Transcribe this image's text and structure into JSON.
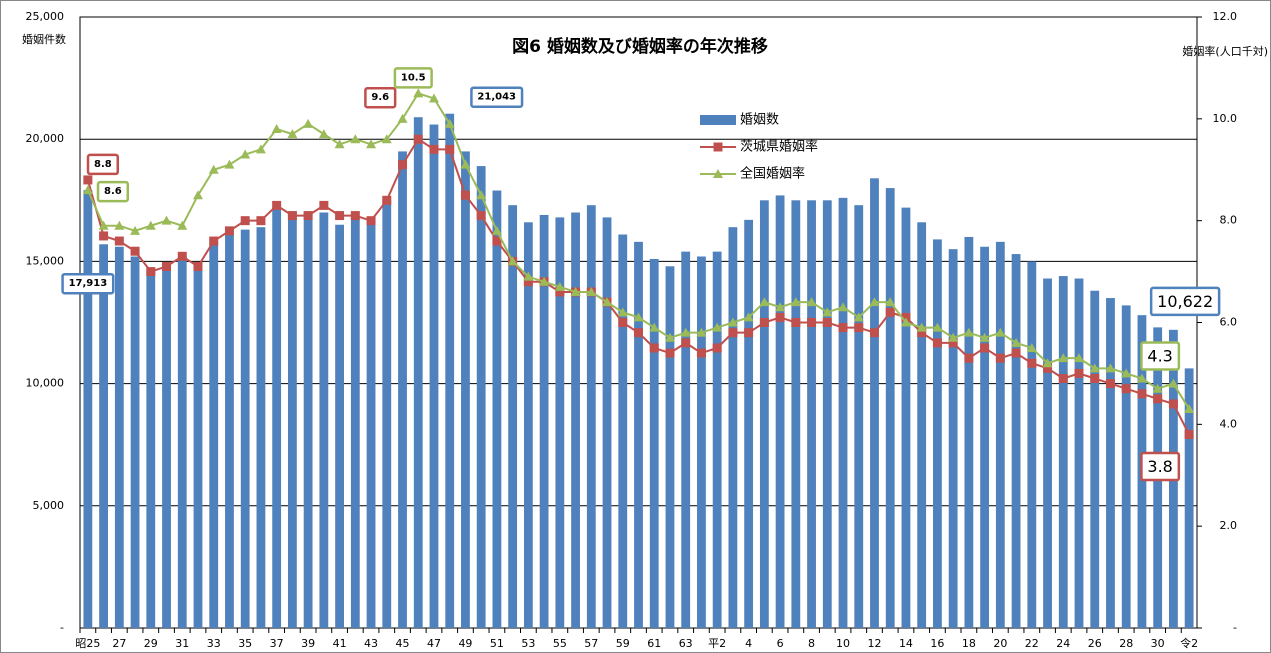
{
  "chart_data": {
    "type": "bar",
    "title": "図6 婚姻数及び婚姻率の年次推移",
    "y_label": "婚姻件数",
    "y2_label": "婚姻率(人口千対)",
    "categories": [
      "昭25",
      null,
      "27",
      null,
      "29",
      null,
      "31",
      null,
      "33",
      null,
      "35",
      null,
      "37",
      null,
      "39",
      null,
      "41",
      null,
      "43",
      null,
      "45",
      null,
      "47",
      null,
      "49",
      null,
      "51",
      null,
      "53",
      null,
      "55",
      null,
      "57",
      null,
      "59",
      null,
      "61",
      null,
      "63",
      null,
      "平2",
      null,
      "4",
      null,
      "6",
      null,
      "8",
      null,
      "10",
      null,
      "12",
      null,
      "14",
      null,
      "16",
      null,
      "18",
      null,
      "20",
      null,
      "22",
      null,
      "24",
      null,
      "26",
      null,
      "28",
      null,
      "30",
      null,
      "令2"
    ],
    "ylim": [
      0,
      25000
    ],
    "yticks": [
      {
        "value": 0,
        "label": "-"
      },
      {
        "value": 5000,
        "label": "5,000"
      },
      {
        "value": 10000,
        "label": "10,000"
      },
      {
        "value": 15000,
        "label": "15,000"
      },
      {
        "value": 20000,
        "label": "20,000"
      },
      {
        "value": 25000,
        "label": "25,000"
      }
    ],
    "y2lim": [
      0,
      12
    ],
    "y2ticks": [
      {
        "value": 0,
        "label": "-"
      },
      {
        "value": 2,
        "label": "2.0"
      },
      {
        "value": 4,
        "label": "4.0"
      },
      {
        "value": 6,
        "label": "6.0"
      },
      {
        "value": 8,
        "label": "8.0"
      },
      {
        "value": 10,
        "label": "10.0"
      },
      {
        "value": 12,
        "label": "12.0"
      }
    ],
    "grid": true,
    "legend": "top-center",
    "series": [
      {
        "name": "婚姻数",
        "color": "#4f81bd",
        "values": [
          17913,
          15700,
          15600,
          15200,
          14600,
          14700,
          15200,
          14700,
          15800,
          16100,
          16300,
          16400,
          17200,
          17000,
          17000,
          17000,
          16500,
          16800,
          16600,
          17500,
          19500,
          20900,
          20600,
          21043,
          19500,
          18900,
          17900,
          17300,
          16600,
          16900,
          16800,
          17000,
          17300,
          16800,
          16100,
          15800,
          15100,
          14800,
          15400,
          15200,
          15400,
          16400,
          16700,
          17500,
          17700,
          17500,
          17500,
          17500,
          17600,
          17300,
          18400,
          18000,
          17200,
          16600,
          15900,
          15500,
          16000,
          15600,
          15800,
          15300,
          15000,
          14300,
          14400,
          14300,
          13800,
          13500,
          13200,
          12800,
          12300,
          12200,
          10622
        ],
        "value_labels": [
          "17,913",
          null,
          null,
          null,
          null,
          null,
          null,
          null,
          null,
          null,
          null,
          null,
          null,
          null,
          null,
          null,
          null,
          null,
          null,
          null,
          null,
          null,
          null,
          "21,043",
          null,
          null,
          null,
          null,
          null,
          null,
          null,
          null,
          null,
          null,
          null,
          null,
          null,
          null,
          null,
          null,
          null,
          null,
          null,
          null,
          null,
          null,
          null,
          null,
          null,
          null,
          null,
          null,
          null,
          null,
          null,
          null,
          null,
          null,
          null,
          null,
          null,
          null,
          null,
          null,
          null,
          null,
          null,
          null,
          null,
          null,
          "10,622"
        ]
      },
      {
        "name": "茨城県婚姻率",
        "type": "line",
        "axis": "y2",
        "color": "#c0504d",
        "values": [
          8.8,
          7.7,
          7.6,
          7.4,
          7.0,
          7.1,
          7.3,
          7.1,
          7.6,
          7.8,
          8.0,
          8.0,
          8.3,
          8.1,
          8.1,
          8.3,
          8.1,
          8.1,
          8.0,
          8.4,
          9.1,
          9.6,
          9.4,
          9.4,
          8.5,
          8.1,
          7.6,
          7.2,
          6.8,
          6.8,
          6.6,
          6.6,
          6.6,
          6.4,
          6.0,
          5.8,
          5.5,
          5.4,
          5.6,
          5.4,
          5.5,
          5.8,
          5.8,
          6.0,
          6.1,
          6.0,
          6.0,
          6.0,
          5.9,
          5.9,
          5.8,
          6.2,
          6.1,
          5.8,
          5.6,
          5.6,
          5.3,
          5.5,
          5.3,
          5.4,
          5.2,
          5.1,
          4.9,
          5.0,
          4.9,
          4.8,
          4.7,
          4.6,
          4.5,
          4.4,
          3.8
        ],
        "value_labels": [
          "8.8",
          null,
          null,
          null,
          null,
          null,
          null,
          null,
          null,
          null,
          null,
          null,
          null,
          null,
          null,
          null,
          null,
          null,
          null,
          null,
          null,
          "9.6",
          null,
          null,
          null,
          null,
          null,
          null,
          null,
          null,
          null,
          null,
          null,
          null,
          null,
          null,
          null,
          null,
          null,
          null,
          null,
          null,
          null,
          null,
          null,
          null,
          null,
          null,
          null,
          null,
          null,
          null,
          null,
          null,
          null,
          null,
          null,
          null,
          null,
          null,
          null,
          null,
          null,
          null,
          null,
          null,
          null,
          null,
          null,
          null,
          "3.8"
        ]
      },
      {
        "name": "全国婚姻率",
        "type": "line",
        "axis": "y2",
        "color": "#9bbb59",
        "values": [
          8.6,
          7.9,
          7.9,
          7.8,
          7.9,
          8.0,
          7.9,
          8.5,
          9.0,
          9.1,
          9.3,
          9.4,
          9.8,
          9.7,
          9.9,
          9.7,
          9.5,
          9.6,
          9.5,
          9.6,
          10.0,
          10.5,
          10.4,
          9.9,
          9.1,
          8.5,
          7.8,
          7.2,
          6.9,
          6.8,
          6.7,
          6.6,
          6.6,
          6.4,
          6.2,
          6.1,
          5.9,
          5.7,
          5.8,
          5.8,
          5.9,
          6.0,
          6.1,
          6.4,
          6.3,
          6.4,
          6.4,
          6.2,
          6.3,
          6.1,
          6.4,
          6.4,
          6.0,
          5.9,
          5.9,
          5.7,
          5.8,
          5.7,
          5.8,
          5.6,
          5.5,
          5.2,
          5.3,
          5.3,
          5.1,
          5.1,
          5.0,
          4.9,
          4.7,
          4.8,
          4.3
        ],
        "value_labels": [
          "8.6",
          null,
          null,
          null,
          null,
          null,
          null,
          null,
          null,
          null,
          null,
          null,
          null,
          null,
          null,
          null,
          null,
          null,
          null,
          null,
          null,
          "10.5",
          null,
          null,
          null,
          null,
          null,
          null,
          null,
          null,
          null,
          null,
          null,
          null,
          null,
          null,
          null,
          null,
          null,
          null,
          null,
          null,
          null,
          null,
          null,
          null,
          null,
          null,
          null,
          null,
          null,
          null,
          null,
          null,
          null,
          null,
          null,
          null,
          null,
          null,
          null,
          null,
          null,
          null,
          null,
          null,
          null,
          null,
          null,
          null,
          "4.3"
        ]
      }
    ]
  }
}
